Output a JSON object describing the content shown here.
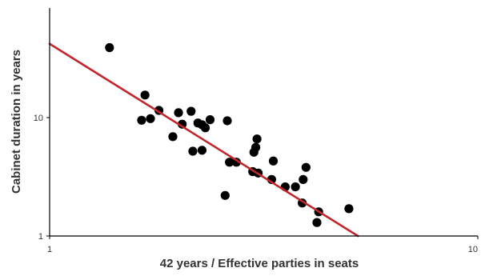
{
  "chart_data": {
    "type": "scatter",
    "title": "",
    "xlabel": "42 years / Effective parties in seats",
    "ylabel": "Cabinet duration in years",
    "x_scale": "log",
    "y_scale": "log",
    "xlim": [
      1,
      10
    ],
    "ylim": [
      1,
      100
    ],
    "x_ticks": [
      {
        "value": 1,
        "label": "1"
      },
      {
        "value": 10,
        "label": "10"
      }
    ],
    "y_ticks": [
      {
        "value": 1,
        "label": "1"
      },
      {
        "value": 10,
        "label": "10"
      }
    ],
    "grid": false,
    "legend": "none",
    "colors": {
      "points": "#000000",
      "fit_line": "#c0272d",
      "axes": "#000000"
    },
    "series": [
      {
        "values": [
          {
            "x": 1.38,
            "y": 39
          },
          {
            "x": 1.67,
            "y": 15.5
          },
          {
            "x": 1.64,
            "y": 9.5
          },
          {
            "x": 1.72,
            "y": 9.8
          },
          {
            "x": 1.8,
            "y": 11.5
          },
          {
            "x": 1.94,
            "y": 6.9
          },
          {
            "x": 2.0,
            "y": 11.0
          },
          {
            "x": 2.04,
            "y": 8.8
          },
          {
            "x": 2.14,
            "y": 11.3
          },
          {
            "x": 2.16,
            "y": 5.2
          },
          {
            "x": 2.22,
            "y": 9.0
          },
          {
            "x": 2.27,
            "y": 8.7
          },
          {
            "x": 2.31,
            "y": 8.2
          },
          {
            "x": 2.37,
            "y": 9.6
          },
          {
            "x": 2.27,
            "y": 5.3
          },
          {
            "x": 2.6,
            "y": 9.4
          },
          {
            "x": 2.63,
            "y": 4.2
          },
          {
            "x": 2.73,
            "y": 4.2
          },
          {
            "x": 2.57,
            "y": 2.2
          },
          {
            "x": 2.98,
            "y": 3.5
          },
          {
            "x": 3.0,
            "y": 5.1
          },
          {
            "x": 3.03,
            "y": 5.6
          },
          {
            "x": 3.05,
            "y": 6.6
          },
          {
            "x": 3.07,
            "y": 3.4
          },
          {
            "x": 3.3,
            "y": 3.0
          },
          {
            "x": 3.33,
            "y": 4.3
          },
          {
            "x": 3.55,
            "y": 2.6
          },
          {
            "x": 3.75,
            "y": 2.6
          },
          {
            "x": 3.91,
            "y": 3.0
          },
          {
            "x": 3.97,
            "y": 3.8
          },
          {
            "x": 3.89,
            "y": 1.9
          },
          {
            "x": 4.21,
            "y": 1.3
          },
          {
            "x": 4.25,
            "y": 1.6
          },
          {
            "x": 5.0,
            "y": 1.7
          }
        ]
      }
    ],
    "fit_line": {
      "points": [
        {
          "x": 1.0,
          "y": 42
        },
        {
          "x": 5.25,
          "y": 1.0
        }
      ]
    }
  }
}
